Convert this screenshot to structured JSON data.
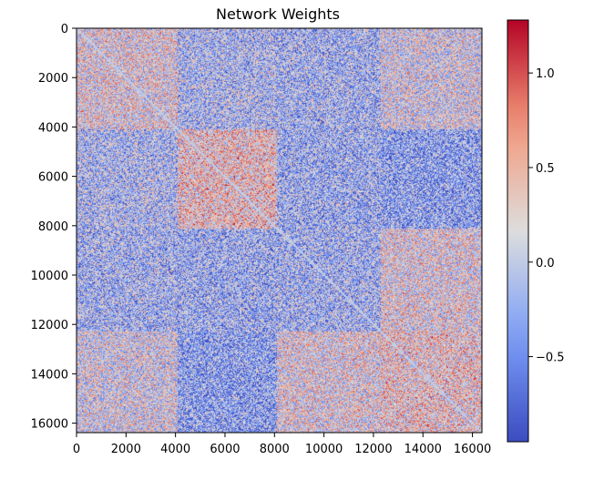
{
  "chart_data": {
    "type": "heatmap",
    "title": "Network Weights",
    "xlabel": "",
    "ylabel": "",
    "xlim": [
      0,
      16384
    ],
    "ylim": [
      16384,
      0
    ],
    "x_ticks": [
      0,
      2000,
      4000,
      6000,
      8000,
      10000,
      12000,
      14000,
      16000
    ],
    "y_ticks": [
      0,
      2000,
      4000,
      6000,
      8000,
      10000,
      12000,
      14000,
      16000
    ],
    "colormap": "coolwarm",
    "value_range": [
      -0.95,
      1.28
    ],
    "colorbar_ticks": [
      {
        "value": 1.0,
        "label": "1.0"
      },
      {
        "value": 0.5,
        "label": "0.5"
      },
      {
        "value": 0.0,
        "label": "0.0"
      },
      {
        "value": -0.5,
        "label": "−0.5"
      }
    ],
    "colorbar_position": "right",
    "symmetric": true,
    "diagonal_value": 0.0,
    "block_boundaries": [
      0,
      4100,
      8100,
      12300,
      16384
    ],
    "block_means": [
      [
        0.2,
        -0.15,
        -0.2,
        0.1
      ],
      [
        -0.15,
        0.35,
        -0.25,
        -0.35
      ],
      [
        -0.2,
        -0.25,
        -0.2,
        0.2
      ],
      [
        0.1,
        -0.35,
        0.2,
        0.3
      ]
    ]
  }
}
